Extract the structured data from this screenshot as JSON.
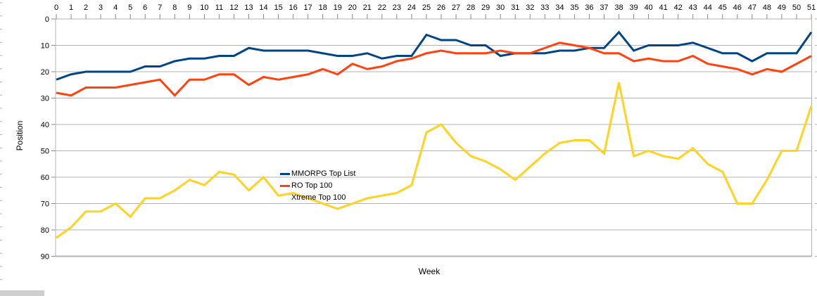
{
  "chart_data": {
    "type": "line",
    "title": "",
    "xlabel": "Week",
    "ylabel": "Position",
    "x": [
      0,
      1,
      2,
      3,
      4,
      5,
      6,
      7,
      8,
      9,
      10,
      11,
      12,
      13,
      14,
      15,
      16,
      17,
      18,
      19,
      20,
      21,
      22,
      23,
      24,
      25,
      26,
      27,
      28,
      29,
      30,
      31,
      32,
      33,
      34,
      35,
      36,
      37,
      38,
      39,
      40,
      41,
      42,
      43,
      44,
      45,
      46,
      47,
      48,
      49,
      50,
      51
    ],
    "y_ticks": [
      0,
      10,
      20,
      30,
      40,
      50,
      60,
      70,
      80,
      90
    ],
    "ylim": [
      0,
      90
    ],
    "y_axis_reversed": true,
    "x_axis_position": "top",
    "grid": true,
    "legend_position": "inside-left-center",
    "series": [
      {
        "name": "MMORPG Top List",
        "color": "#004586",
        "values": [
          23,
          21,
          20,
          20,
          20,
          20,
          18,
          18,
          16,
          15,
          15,
          14,
          14,
          11,
          12,
          12,
          12,
          12,
          13,
          14,
          14,
          13,
          15,
          14,
          14,
          6,
          8,
          8,
          10,
          10,
          14,
          13,
          13,
          13,
          12,
          12,
          11,
          11,
          5,
          12,
          10,
          10,
          10,
          9,
          11,
          13,
          13,
          16,
          13,
          13,
          13,
          5
        ]
      },
      {
        "name": "RO Top 100",
        "color": "#ff420e",
        "values": [
          28,
          29,
          26,
          26,
          26,
          25,
          24,
          23,
          29,
          23,
          23,
          21,
          21,
          25,
          22,
          23,
          22,
          21,
          19,
          21,
          17,
          19,
          18,
          16,
          15,
          13,
          12,
          13,
          13,
          13,
          12,
          13,
          13,
          11,
          9,
          10,
          11,
          13,
          13,
          16,
          15,
          16,
          16,
          14,
          17,
          18,
          19,
          21,
          19,
          20,
          17,
          14
        ]
      },
      {
        "name": "Xtreme Top 100",
        "color": "#ffd320",
        "legend_swatch_hidden": true,
        "values": [
          83,
          79,
          73,
          73,
          70,
          75,
          68,
          68,
          65,
          61,
          63,
          58,
          59,
          65,
          60,
          67,
          66,
          68,
          70,
          72,
          70,
          68,
          67,
          66,
          63,
          43,
          40,
          47,
          52,
          54,
          57,
          61,
          56,
          51,
          47,
          46,
          46,
          51,
          24,
          52,
          50,
          52,
          53,
          49,
          55,
          58,
          70,
          70,
          61,
          50,
          50,
          33
        ]
      }
    ]
  },
  "colors": {
    "grid": "#b3b3b3",
    "axis": "#b3b3b3",
    "text": "#000000",
    "background": "#ffffff",
    "edge_fragment": "#cfcfcf"
  }
}
